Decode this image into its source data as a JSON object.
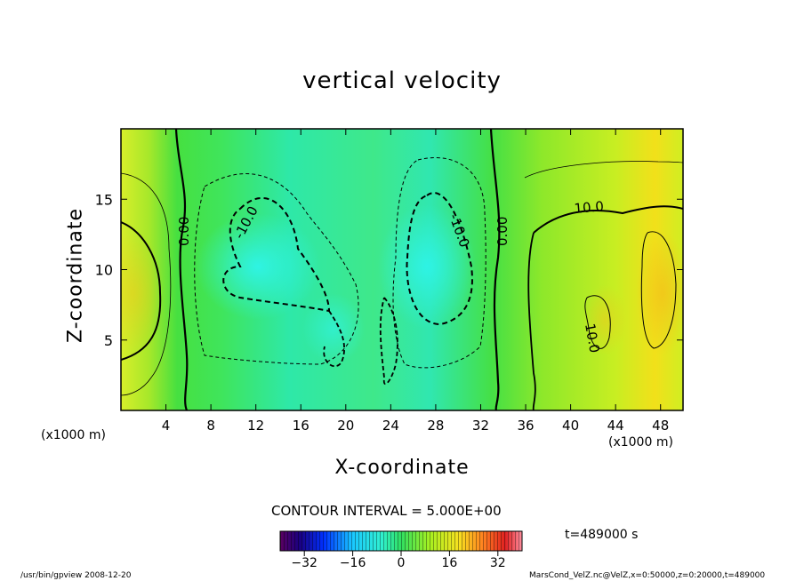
{
  "chart_data": {
    "type": "heatmap",
    "title": "vertical velocity",
    "xlabel": "X-coordinate",
    "ylabel": "Z-coordinate",
    "x_unit": "(x1000 m)",
    "xlim": [
      0,
      50
    ],
    "ylim": [
      0,
      20
    ],
    "x_ticks": [
      4,
      8,
      12,
      16,
      20,
      24,
      28,
      32,
      36,
      40,
      44,
      48
    ],
    "y_ticks": [
      5,
      10,
      15
    ],
    "contour_labels": [
      "0.00",
      "-10.0",
      "-10.0",
      "0.00",
      "10.0",
      "10.0"
    ],
    "contour_interval_text": "CONTOUR INTERVAL = 5.000E+00",
    "colorbar": {
      "range": [
        -40,
        40
      ],
      "ticks": [
        -32,
        -16,
        0,
        16,
        32
      ]
    },
    "time_label": "t=489000 s"
  },
  "footer": {
    "left": "/usr/bin/gpview  2008-12-20",
    "right": "MarsCond_VelZ.nc@VelZ,x=0:50000,z=0:20000,t=489000"
  }
}
